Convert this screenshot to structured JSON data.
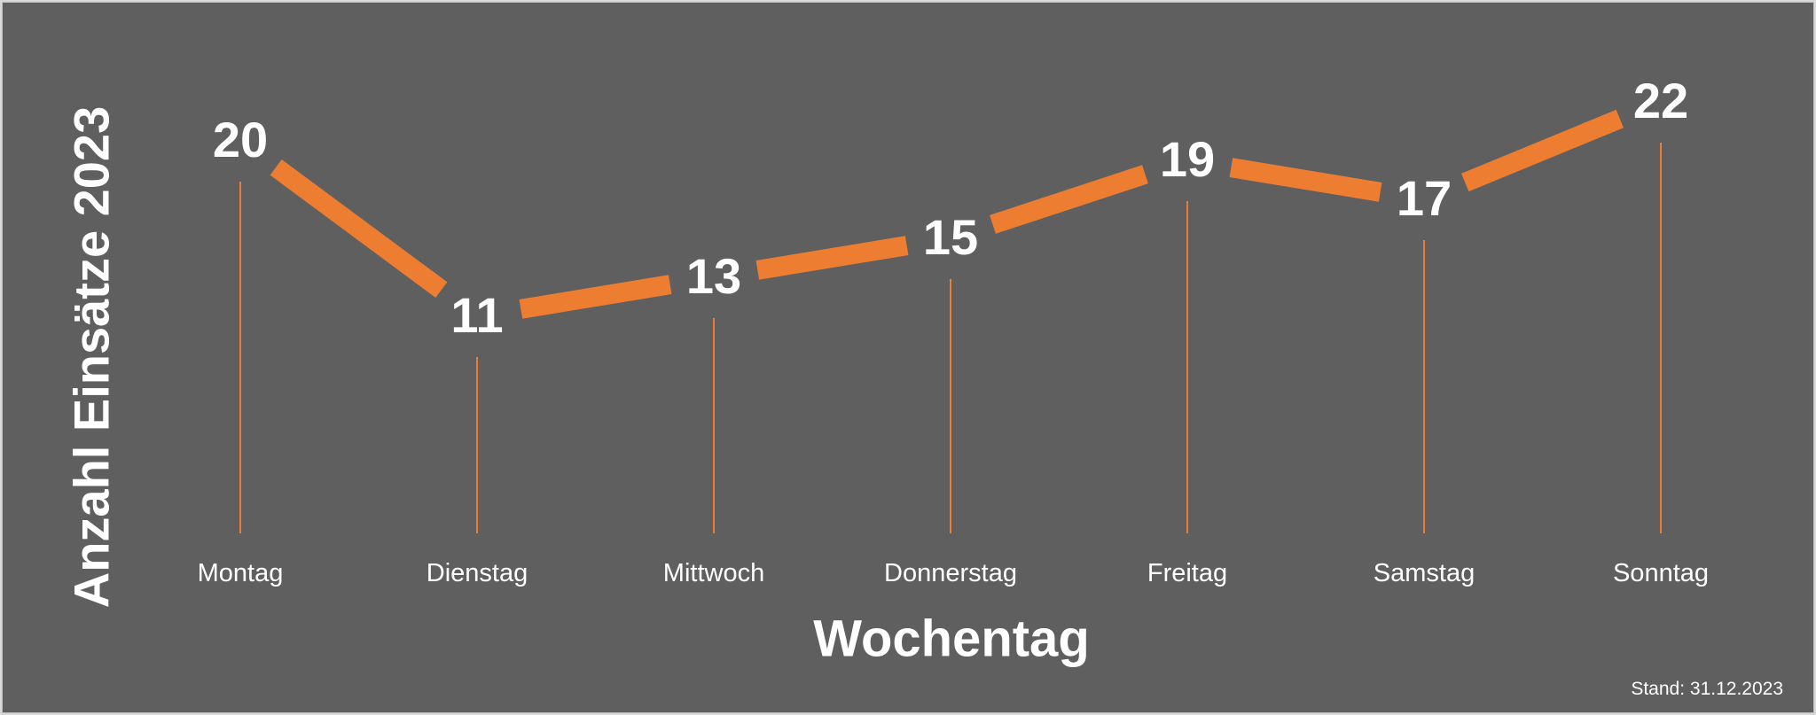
{
  "chart_data": {
    "type": "line",
    "title": "",
    "xlabel": "Wochentag",
    "ylabel": "Anzahl Einsätze 2023",
    "categories": [
      "Montag",
      "Dienstag",
      "Mittwoch",
      "Donnerstag",
      "Freitag",
      "Samstag",
      "Sonntag"
    ],
    "series": [
      {
        "values": [
          20,
          11,
          13,
          15,
          19,
          17,
          22
        ]
      }
    ],
    "data_labels": true,
    "grid": false,
    "legend": "none",
    "drop_lines": true,
    "colors": {
      "background": "#5f5f5f",
      "line": "#ed7d31",
      "text": "#ffffff"
    }
  },
  "footer": {
    "stand": "Stand: 31.12.2023"
  }
}
